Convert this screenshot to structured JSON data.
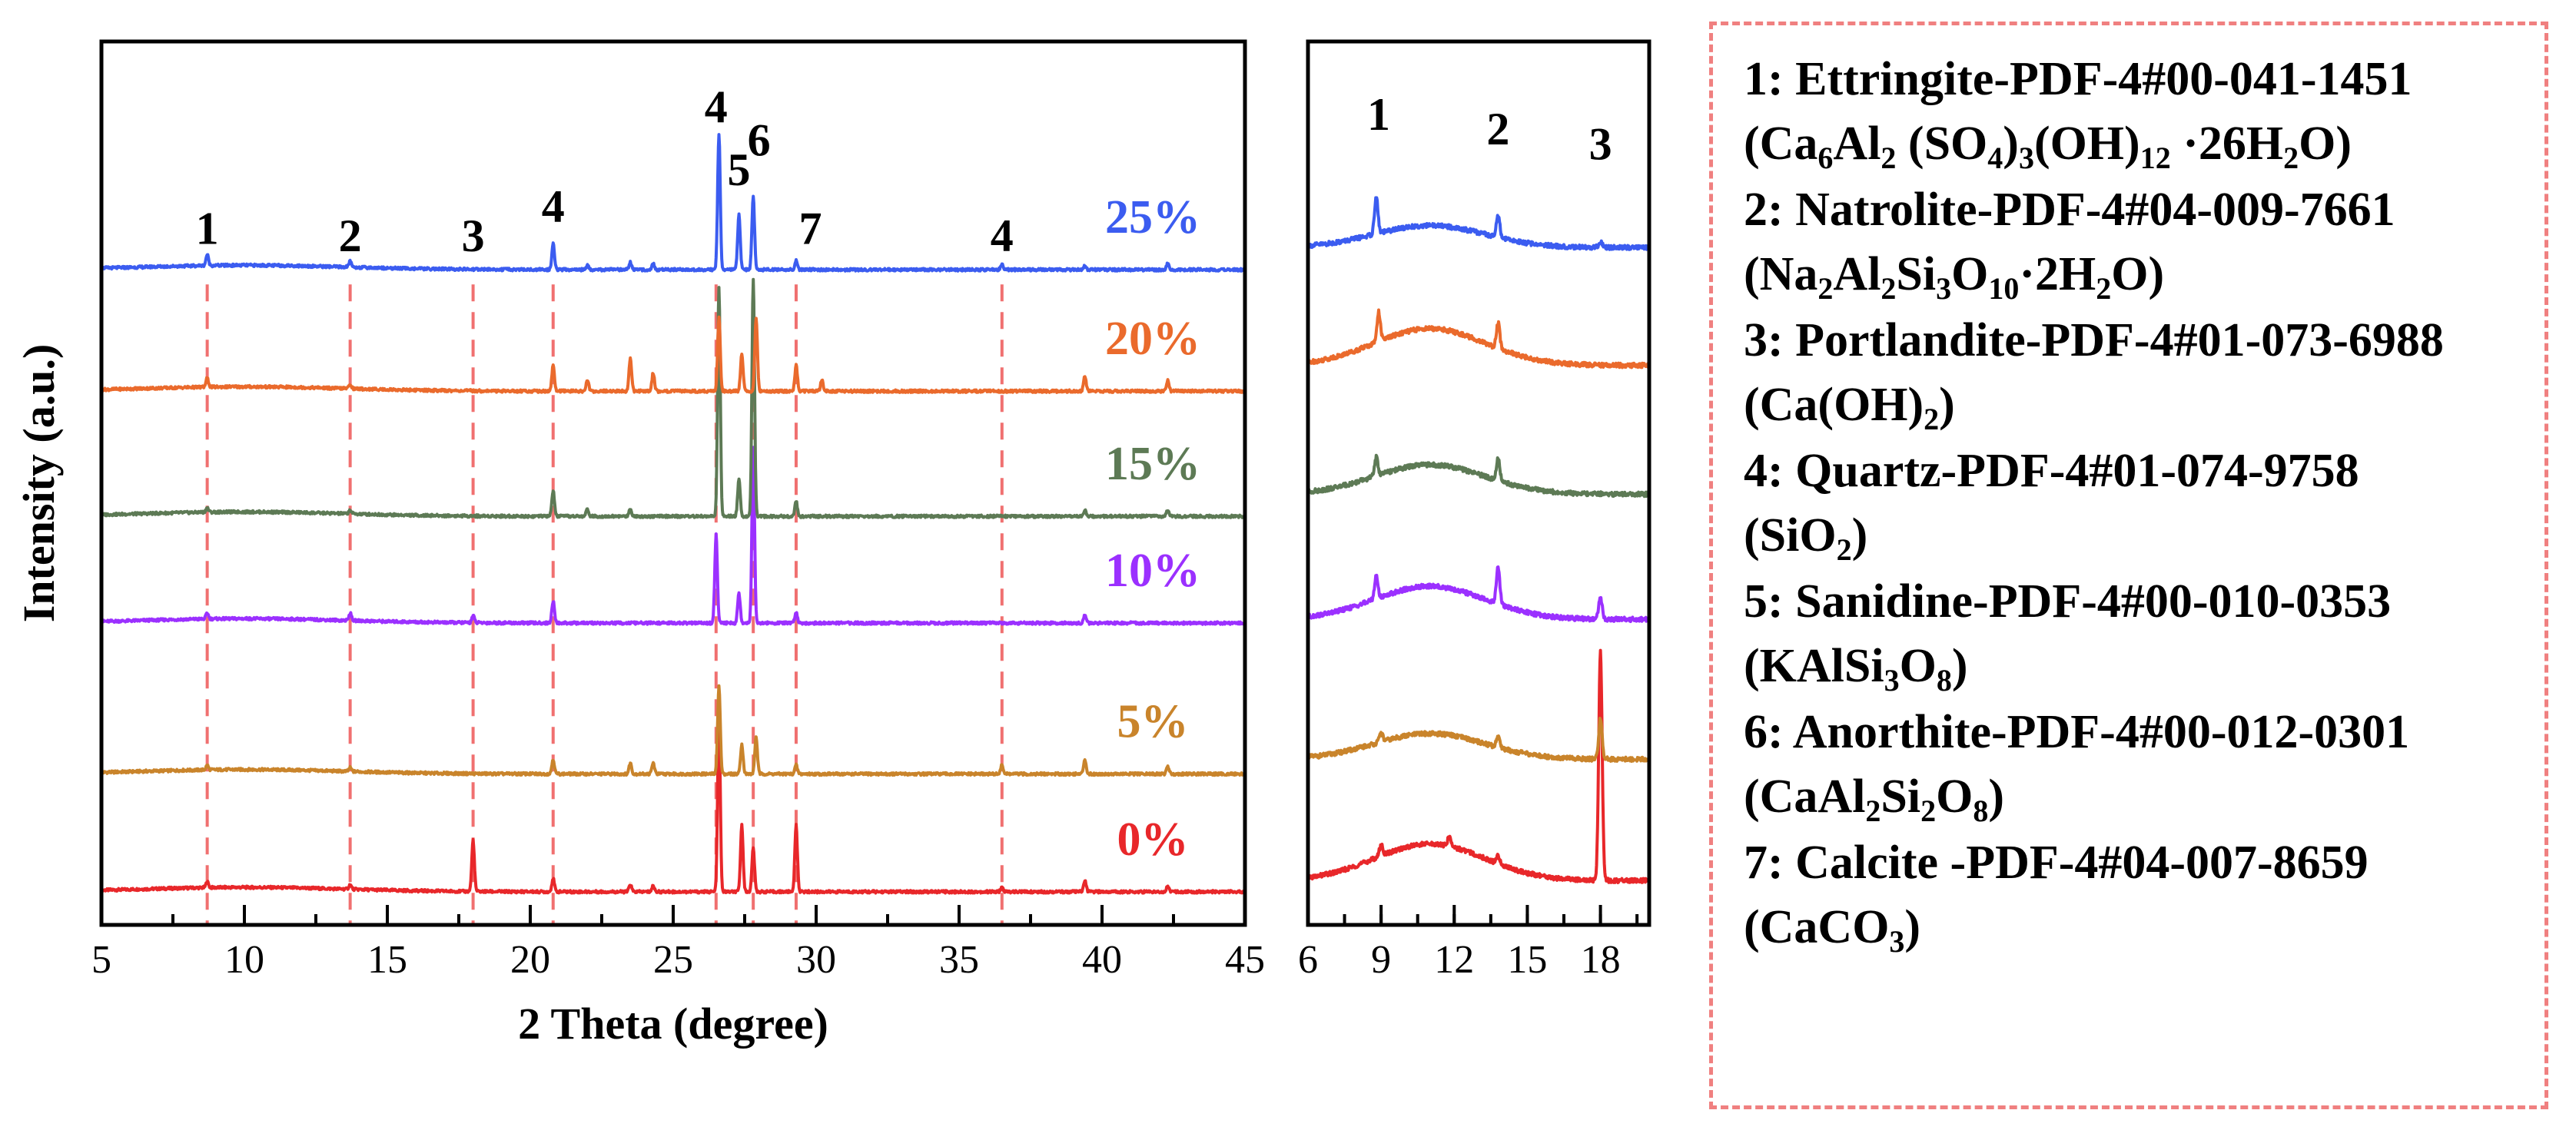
{
  "chart_data": [
    {
      "type": "line",
      "name": "main-xrd",
      "xlabel": "2 Theta (degree)",
      "ylabel": "Intensity (a.u.)",
      "xlim": [
        5,
        45
      ],
      "ylim": [
        0,
        12
      ],
      "xticks": [
        5,
        10,
        15,
        20,
        25,
        30,
        35,
        40,
        45
      ],
      "series": [
        {
          "name": "0%",
          "label": "0%",
          "color": "#e8272a",
          "baseline": 0.45,
          "peaks": [
            [
              8.7,
              0.08
            ],
            [
              13.7,
              0.06
            ],
            [
              18.0,
              0.7
            ],
            [
              20.8,
              0.18
            ],
            [
              23.5,
              0.1
            ],
            [
              24.3,
              0.08
            ],
            [
              26.6,
              2.4
            ],
            [
              27.4,
              0.9
            ],
            [
              27.8,
              0.6
            ],
            [
              29.3,
              0.9
            ],
            [
              36.5,
              0.06
            ],
            [
              39.4,
              0.15
            ],
            [
              42.3,
              0.08
            ]
          ]
        },
        {
          "name": "5%",
          "label": "5%",
          "color": "#c9842b",
          "baseline": 2.05,
          "peaks": [
            [
              8.7,
              0.06
            ],
            [
              13.7,
              0.05
            ],
            [
              20.8,
              0.2
            ],
            [
              23.5,
              0.15
            ],
            [
              24.3,
              0.15
            ],
            [
              26.6,
              1.2
            ],
            [
              27.4,
              0.4
            ],
            [
              27.9,
              0.5
            ],
            [
              29.3,
              0.12
            ],
            [
              36.5,
              0.12
            ],
            [
              39.4,
              0.2
            ],
            [
              42.3,
              0.1
            ]
          ]
        },
        {
          "name": "10%",
          "label": "10%",
          "color": "#9b30ff",
          "baseline": 4.1,
          "peaks": [
            [
              8.7,
              0.08
            ],
            [
              13.7,
              0.1
            ],
            [
              18.0,
              0.1
            ],
            [
              20.8,
              0.3
            ],
            [
              26.5,
              1.2
            ],
            [
              27.3,
              0.4
            ],
            [
              27.8,
              2.4
            ],
            [
              29.3,
              0.15
            ],
            [
              39.4,
              0.1
            ]
          ]
        },
        {
          "name": "15%",
          "label": "15%",
          "color": "#5d7a55",
          "baseline": 5.55,
          "peaks": [
            [
              8.7,
              0.06
            ],
            [
              13.7,
              0.05
            ],
            [
              20.8,
              0.35
            ],
            [
              22.0,
              0.1
            ],
            [
              23.5,
              0.1
            ],
            [
              26.6,
              3.1
            ],
            [
              27.3,
              0.5
            ],
            [
              27.8,
              3.2
            ],
            [
              29.3,
              0.2
            ],
            [
              39.4,
              0.08
            ],
            [
              42.3,
              0.08
            ]
          ]
        },
        {
          "name": "20%",
          "label": "20%",
          "color": "#ea6a2c",
          "baseline": 7.25,
          "peaks": [
            [
              8.7,
              0.12
            ],
            [
              13.7,
              0.06
            ],
            [
              20.8,
              0.35
            ],
            [
              22.0,
              0.15
            ],
            [
              23.5,
              0.45
            ],
            [
              24.3,
              0.25
            ],
            [
              26.6,
              1.0
            ],
            [
              27.4,
              0.5
            ],
            [
              27.9,
              1.0
            ],
            [
              29.3,
              0.35
            ],
            [
              30.2,
              0.15
            ],
            [
              39.4,
              0.2
            ],
            [
              42.3,
              0.15
            ]
          ]
        },
        {
          "name": "25%",
          "label": "25%",
          "color": "#3b5cf0",
          "baseline": 8.9,
          "peaks": [
            [
              8.7,
              0.15
            ],
            [
              13.7,
              0.08
            ],
            [
              20.8,
              0.35
            ],
            [
              22.0,
              0.06
            ],
            [
              23.5,
              0.1
            ],
            [
              24.3,
              0.08
            ],
            [
              26.6,
              1.85
            ],
            [
              27.3,
              0.75
            ],
            [
              27.8,
              1.0
            ],
            [
              29.3,
              0.12
            ],
            [
              36.5,
              0.08
            ],
            [
              39.4,
              0.06
            ],
            [
              42.3,
              0.08
            ]
          ]
        }
      ],
      "reference_lines": [
        8.7,
        13.7,
        18.0,
        20.8,
        26.5,
        27.8,
        29.3,
        36.5
      ],
      "peak_labels": [
        {
          "text": "1",
          "x": 8.7,
          "y": 9.25
        },
        {
          "text": "2",
          "x": 13.7,
          "y": 9.15
        },
        {
          "text": "3",
          "x": 18.0,
          "y": 9.15
        },
        {
          "text": "4",
          "x": 20.8,
          "y": 9.55
        },
        {
          "text": "4",
          "x": 26.5,
          "y": 10.9
        },
        {
          "text": "5",
          "x": 27.3,
          "y": 10.05
        },
        {
          "text": "6",
          "x": 28.0,
          "y": 10.45
        },
        {
          "text": "7",
          "x": 29.8,
          "y": 9.25
        },
        {
          "text": "4",
          "x": 36.5,
          "y": 9.15
        }
      ]
    },
    {
      "type": "line",
      "name": "zoom-xrd",
      "xlabel": "",
      "xlim": [
        6,
        20
      ],
      "ylim": [
        0,
        12
      ],
      "xticks": [
        6,
        9,
        12,
        15,
        18
      ],
      "series": [
        {
          "name": "0%",
          "color": "#e8272a",
          "baseline": 0.6,
          "hump": 0.5,
          "peaks": [
            [
              9.0,
              0.15
            ],
            [
              11.8,
              0.12
            ],
            [
              13.8,
              0.1
            ],
            [
              18.0,
              3.1
            ]
          ]
        },
        {
          "name": "5%",
          "color": "#c9842b",
          "baseline": 2.25,
          "hump": 0.35,
          "peaks": [
            [
              9.0,
              0.12
            ],
            [
              13.8,
              0.15
            ],
            [
              18.0,
              0.55
            ]
          ]
        },
        {
          "name": "10%",
          "color": "#9b30ff",
          "baseline": 4.15,
          "hump": 0.45,
          "peaks": [
            [
              8.8,
              0.3
            ],
            [
              13.8,
              0.5
            ],
            [
              18.0,
              0.3
            ]
          ]
        },
        {
          "name": "15%",
          "color": "#5d7a55",
          "baseline": 5.85,
          "hump": 0.4,
          "peaks": [
            [
              8.8,
              0.25
            ],
            [
              13.8,
              0.3
            ]
          ]
        },
        {
          "name": "20%",
          "color": "#ea6a2c",
          "baseline": 7.6,
          "hump": 0.5,
          "peaks": [
            [
              8.9,
              0.4
            ],
            [
              13.8,
              0.35
            ]
          ]
        },
        {
          "name": "25%",
          "color": "#3b5cf0",
          "baseline": 9.2,
          "hump": 0.3,
          "peaks": [
            [
              8.8,
              0.5
            ],
            [
              13.8,
              0.3
            ],
            [
              18.0,
              0.08
            ]
          ]
        }
      ],
      "peak_labels": [
        {
          "text": "1",
          "x": 8.9,
          "y": 10.8
        },
        {
          "text": "2",
          "x": 13.8,
          "y": 10.6
        },
        {
          "text": "3",
          "x": 18.0,
          "y": 10.4
        }
      ]
    }
  ],
  "legend": [
    {
      "line1": "1: Ettringite-PDF-4#00-041-1451",
      "line2": "(Ca<sub>6</sub>Al<sub>2</sub> (SO<sub>4</sub>)<sub>3</sub>(OH)<sub>12</sub> ·26H<sub>2</sub>O)"
    },
    {
      "line1": "2: Natrolite-PDF-4#04-009-7661",
      "line2": "(Na<sub>2</sub>Al<sub>2</sub>Si<sub>3</sub>O<sub>10</sub>·2H<sub>2</sub>O)"
    },
    {
      "line1": "3: Portlandite-PDF-4#01-073-6988",
      "line2": "(Ca(OH)<sub>2</sub>)"
    },
    {
      "line1": "4: Quartz-PDF-4#01-074-9758",
      "line2": "(SiO<sub>2</sub>)"
    },
    {
      "line1": "5: Sanidine-PDF-4#00-010-0353",
      "line2": "(KAlSi<sub>3</sub>O<sub>8</sub>)"
    },
    {
      "line1": "6: Anorthite-PDF-4#00-012-0301",
      "line2": "(CaAl<sub>2</sub>Si<sub>2</sub>O<sub>8</sub>)"
    },
    {
      "line1": "7: Calcite -PDF-4#04-007-8659",
      "line2": "(CaCO<sub>3</sub>)"
    }
  ]
}
